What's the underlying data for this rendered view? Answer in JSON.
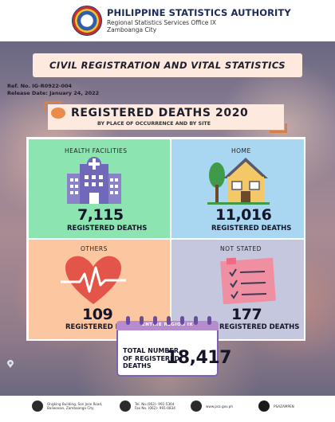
{
  "header": {
    "org_name": "PHILIPPINE STATISTICS AUTHORITY",
    "office": "Regional Statistics Services Office IX",
    "city": "Zamboanga City"
  },
  "banner_title": "CIVIL REGISTRATION AND  VITAL STATISTICS",
  "reference": {
    "ref_no": "Ref. No. IG-R0922-004",
    "release_date": "Release Date: January 24, 2022"
  },
  "report": {
    "title": "REGISTERED DEATHS 2020",
    "subtitle": "BY PLACE OF OCCURRENCE AND BY SITE"
  },
  "quadrants": [
    {
      "label": "HEALTH FACILITIES",
      "value": "7,115",
      "sub": "REGISTERED DEATHS",
      "color": "#8ce5b1",
      "icon": "hospital-icon"
    },
    {
      "label": "HOME",
      "value": "11,016",
      "sub": "REGISTERED DEATHS",
      "color": "#a9d7f2",
      "icon": "house-icon"
    },
    {
      "label": "OTHERS",
      "value": "109",
      "sub": "REGISTERED DEATHS",
      "color": "#fcc6a0",
      "icon": "heart-icon"
    },
    {
      "label": "NOT STATED",
      "value": "177",
      "sub": "REGISTERED DEATHS",
      "color": "#c4c7dd",
      "icon": "checklist-icon"
    }
  ],
  "total": {
    "region": "ENTIRE REGION IX",
    "label_line1": "TOTAL NUMBER",
    "label_line2": "OF REGISTERED",
    "label_line3": "DEATHS",
    "value": "18,417"
  },
  "footer": {
    "address_line1": "Ongking Building, San Jose Road,",
    "address_line2": "Baliwasan, Zamboanga City",
    "tel": "Tel. No.(062)- 991-5364",
    "fax": "Fax No. (062)- 991-0834",
    "website": "www.psa.gov.ph",
    "facebook": "PSAZAMPEN"
  }
}
